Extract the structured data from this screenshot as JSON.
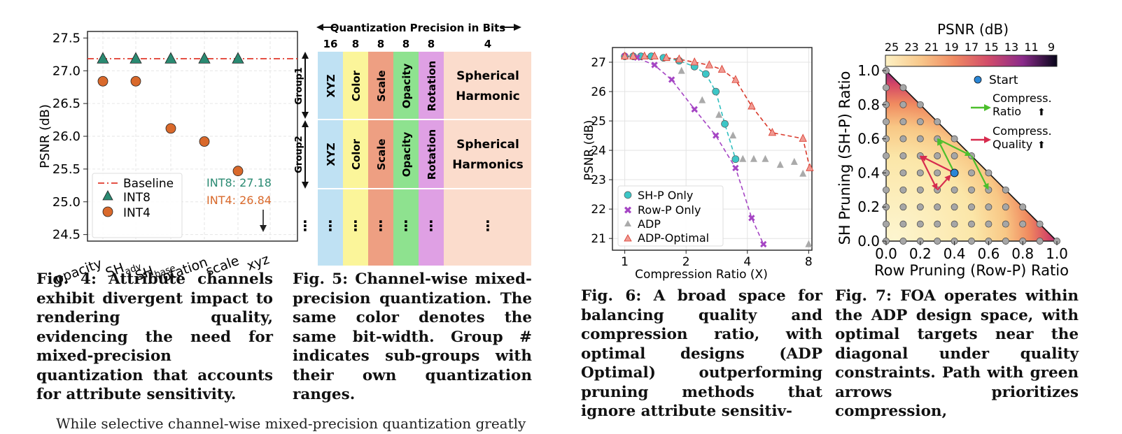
{
  "fig4": {
    "ylabel": "PSNR (dB)",
    "yticks": [
      "27.5",
      "27.0",
      "26.5",
      "26.0",
      "25.5",
      "25.0",
      "24.5"
    ],
    "xticks": [
      "opacity",
      "SH",
      "adv",
      "SH",
      "base",
      "rotation",
      "scale",
      "xyz"
    ],
    "legend": {
      "baseline": "Baseline",
      "int8": "INT8",
      "int4": "INT4"
    },
    "annot_int8": "INT8: 27.18",
    "annot_int4": "INT4: 26.84",
    "caption_label": "Fig. 4:",
    "caption": "Attribute channels exhibit divergent impact to rendering quality, evidencing the need for mixed-precision quantization that accounts for attribute sensitivity.",
    "colors": {
      "int8": "#2a8a72",
      "int4": "#d9692b",
      "baseline": "#e0392b"
    }
  },
  "fig5": {
    "header": "Quantization Precision in Bits",
    "bits": [
      "16",
      "8",
      "8",
      "8",
      "8",
      "4"
    ],
    "groups": [
      "Group1",
      "Group2"
    ],
    "columns": [
      "XYZ",
      "Color",
      "Scale",
      "Opacity",
      "Rotation"
    ],
    "sh_row1": [
      "Spherical",
      "Harmonic"
    ],
    "sh_row2": [
      "Spherical",
      "Harmonics"
    ],
    "dots": "⋮",
    "caption_label": "Fig. 5:",
    "caption": "Channel-wise mixed-precision quantization. The same color denotes the same bit-width. Group # indicates sub-groups with their own quantization ranges.",
    "colors": {
      "xyz": "#bfe1f3",
      "color": "#fbf59a",
      "scale": "#ee9f82",
      "opacity": "#8ee28f",
      "rotation": "#dfa0e4",
      "sh": "#fbdccc"
    }
  },
  "fig6": {
    "ylabel": "PSNR (dB)",
    "xlabel": "Compression Ratio (X)",
    "yticks": [
      "27",
      "26",
      "25",
      "24",
      "23",
      "22",
      "21"
    ],
    "xticks": [
      "1",
      "2",
      "4",
      "8"
    ],
    "legend": [
      "SH-P Only",
      "Row-P Only",
      "ADP",
      "ADP-Optimal"
    ],
    "caption_label": "Fig. 6:",
    "caption": "A broad space for balancing quality and compression ratio, with optimal designs (ADP Optimal) outperforming pruning methods that ignore attribute sensitiv-"
  },
  "fig7": {
    "colorbar_title": "PSNR (dB)",
    "colorbar_ticks": [
      "25",
      "23",
      "21",
      "19",
      "17",
      "15",
      "13",
      "11",
      "9"
    ],
    "ylabel": "SH Pruning (SH-P) Ratio",
    "xlabel": "Row Pruning (Row-P) Ratio",
    "ticks": [
      "0.0",
      "0.2",
      "0.4",
      "0.6",
      "0.8",
      "1.0"
    ],
    "legend": {
      "start": "Start",
      "green1": "Compress.",
      "green2": "Ratio",
      "red1": "Compress.",
      "red2": "Quality",
      "arrow": "⬆"
    },
    "caption_label": "Fig. 7:",
    "caption": "FOA operates within the ADP design space, with optimal targets near the diagonal under quality constraints. Path with green arrows prioritizes compression,"
  },
  "body_text": "While selective channel-wise mixed-precision quantization greatly",
  "chart_data": [
    {
      "type": "scatter",
      "title": "",
      "xlabel": "",
      "ylabel": "PSNR (dB)",
      "ylim": [
        24.4,
        27.6
      ],
      "categories": [
        "opacity",
        "SH_adv",
        "SH_base",
        "rotation",
        "scale",
        "xyz"
      ],
      "series": [
        {
          "name": "INT8",
          "values": [
            27.18,
            27.18,
            27.18,
            27.18,
            27.18,
            null
          ]
        },
        {
          "name": "INT4",
          "values": [
            26.84,
            26.84,
            26.12,
            25.92,
            25.47,
            null
          ]
        },
        {
          "name": "Baseline",
          "values": [
            27.2,
            27.2,
            27.2,
            27.2,
            27.2,
            27.2
          ]
        }
      ]
    },
    {
      "type": "scatter",
      "xlabel": "Compression Ratio (X)",
      "ylabel": "PSNR (dB)",
      "xscale": "log",
      "ylim": [
        20.6,
        27.5
      ],
      "series": [
        {
          "name": "SH-P Only",
          "points": [
            [
              1,
              27.2
            ],
            [
              1.1,
              27.2
            ],
            [
              1.2,
              27.2
            ],
            [
              1.35,
              27.2
            ],
            [
              1.55,
              27.15
            ],
            [
              1.85,
              27.05
            ],
            [
              2.2,
              26.85
            ],
            [
              2.5,
              26.6
            ],
            [
              2.8,
              26.0
            ],
            [
              3.1,
              24.9
            ],
            [
              3.5,
              23.7
            ]
          ]
        },
        {
          "name": "Row-P Only",
          "points": [
            [
              1,
              27.2
            ],
            [
              1.15,
              27.15
            ],
            [
              1.4,
              26.9
            ],
            [
              1.7,
              26.4
            ],
            [
              2.2,
              25.4
            ],
            [
              2.8,
              24.5
            ],
            [
              3.5,
              23.4
            ],
            [
              4.2,
              21.7
            ],
            [
              4.8,
              20.8
            ]
          ]
        },
        {
          "name": "ADP",
          "points": [
            [
              1.9,
              26.7
            ],
            [
              2.4,
              25.7
            ],
            [
              2.9,
              25.2
            ],
            [
              3.4,
              24.5
            ],
            [
              3.8,
              23.7
            ],
            [
              4.3,
              23.7
            ],
            [
              4.9,
              23.7
            ],
            [
              5.8,
              23.5
            ],
            [
              6.8,
              23.6
            ],
            [
              7.5,
              23.2
            ],
            [
              8,
              20.8
            ]
          ]
        },
        {
          "name": "ADP-Optimal",
          "points": [
            [
              1,
              27.2
            ],
            [
              1.1,
              27.2
            ],
            [
              1.25,
              27.2
            ],
            [
              1.4,
              27.2
            ],
            [
              1.6,
              27.15
            ],
            [
              1.85,
              27.1
            ],
            [
              2.2,
              27.0
            ],
            [
              2.6,
              26.9
            ],
            [
              3.0,
              26.75
            ],
            [
              3.5,
              26.4
            ],
            [
              4.2,
              25.5
            ],
            [
              5.3,
              24.6
            ],
            [
              7.5,
              24.4
            ],
            [
              8.1,
              23.4
            ]
          ]
        }
      ]
    },
    {
      "type": "heatmap",
      "xlabel": "Row Pruning (Row-P) Ratio",
      "ylabel": "SH Pruning (SH-P) Ratio",
      "xlim": [
        0,
        1
      ],
      "ylim": [
        0,
        1
      ],
      "colorbar": {
        "title": "PSNR (dB)",
        "range": [
          9,
          25
        ]
      },
      "start": [
        0.4,
        0.4
      ],
      "green_path": [
        [
          0.4,
          0.4
        ],
        [
          0.3,
          0.6
        ],
        [
          0.5,
          0.5
        ],
        [
          0.6,
          0.3
        ]
      ],
      "red_path": [
        [
          0.4,
          0.4
        ],
        [
          0.2,
          0.5
        ],
        [
          0.3,
          0.3
        ]
      ]
    }
  ]
}
